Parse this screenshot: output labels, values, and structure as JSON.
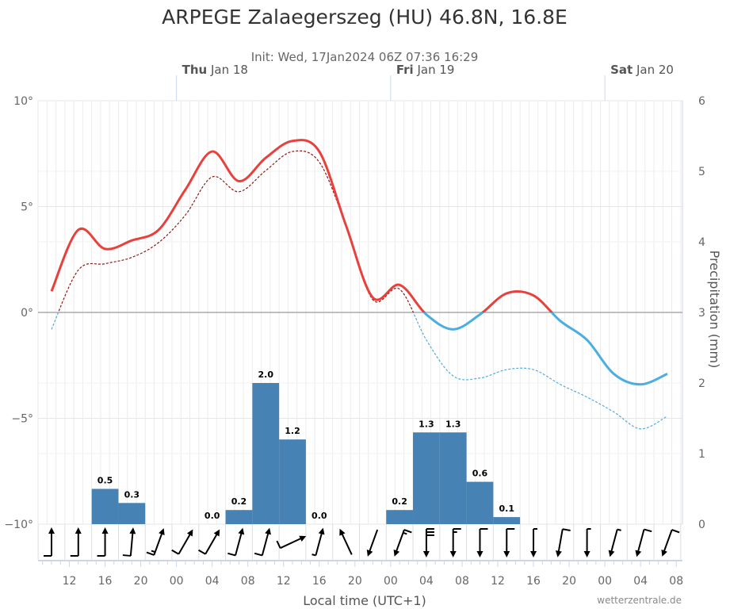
{
  "title": "ARPEGE Zalaegerszeg (HU) 46.8N, 16.8E",
  "subtitle": "Init: Wed, 17Jan2024 06Z 07:36 16:29",
  "credit": "wetterzentrale.de",
  "day_labels": [
    {
      "dow": "Thu",
      "date": "Jan 18"
    },
    {
      "dow": "Fri",
      "date": "Jan 19"
    },
    {
      "dow": "Sat",
      "date": "Jan 20"
    }
  ],
  "colors": {
    "temp_above": "#e8413c",
    "temp_below": "#4aaee3",
    "dew_above": "#8b1a1a",
    "dew_below": "#4aaee3",
    "precip": "#4682b4"
  },
  "chart_data": {
    "type": "line",
    "xlabel": "Local time (UTC+1)",
    "ylabel_left": "",
    "ylabel_right": "Precipitation (mm)",
    "ylim_left": [
      -10,
      10
    ],
    "ylim_right": [
      0,
      6
    ],
    "left_ticks": [
      "10°",
      "5°",
      "0°",
      "−5°",
      "−10°"
    ],
    "right_ticks": [
      "6",
      "5",
      "4",
      "3",
      "2",
      "1",
      "0"
    ],
    "x_ticks": [
      "12",
      "16",
      "20",
      "00",
      "04",
      "08",
      "12",
      "16",
      "20",
      "00",
      "04",
      "08",
      "12",
      "16",
      "20",
      "00",
      "04",
      "08"
    ],
    "grid": true,
    "x": [
      "Wed 10:00",
      "Wed 13:00",
      "Wed 16:00",
      "Wed 19:00",
      "Wed 22:00",
      "Thu 01:00",
      "Thu 04:00",
      "Thu 07:00",
      "Thu 10:00",
      "Thu 13:00",
      "Thu 16:00",
      "Thu 19:00",
      "Thu 22:00",
      "Fri 01:00",
      "Fri 04:00",
      "Fri 07:00",
      "Fri 10:00",
      "Fri 13:00",
      "Fri 16:00",
      "Fri 19:00",
      "Fri 22:00",
      "Sat 01:00",
      "Sat 04:00",
      "Sat 07:00"
    ],
    "temperature": [
      1.0,
      3.9,
      3.0,
      3.4,
      3.9,
      5.8,
      7.6,
      6.2,
      7.3,
      8.1,
      7.6,
      4.1,
      0.7,
      1.3,
      -0.1,
      -0.8,
      -0.1,
      0.9,
      0.8,
      -0.4,
      -1.3,
      -2.9,
      -3.4,
      -2.9
    ],
    "dewpoint": [
      -0.8,
      2.0,
      2.3,
      2.6,
      3.3,
      4.6,
      6.4,
      5.7,
      6.7,
      7.6,
      7.1,
      4.1,
      0.6,
      1.1,
      -1.3,
      -3.0,
      -3.1,
      -2.7,
      -2.7,
      -3.4,
      -4.0,
      -4.7,
      -5.5,
      -4.9
    ],
    "precipitation": [
      null,
      null,
      0.5,
      0.3,
      null,
      null,
      0.0,
      0.2,
      2.0,
      1.2,
      0.0,
      null,
      null,
      0.2,
      1.3,
      1.3,
      0.6,
      0.1,
      null,
      null,
      null,
      null,
      null,
      null
    ],
    "wind_from_deg": [
      180,
      180,
      180,
      185,
      200,
      210,
      210,
      195,
      195,
      245,
      195,
      155,
      20,
      20,
      0,
      0,
      0,
      0,
      0,
      10,
      0,
      15,
      15,
      20
    ],
    "wind_barbs": [
      1,
      1,
      1,
      1,
      1.5,
      1,
      1,
      1,
      1,
      1,
      0.5,
      0,
      0,
      1.5,
      3,
      1.5,
      1,
      1,
      0.5,
      1,
      0.5,
      0.5,
      1,
      1
    ]
  }
}
